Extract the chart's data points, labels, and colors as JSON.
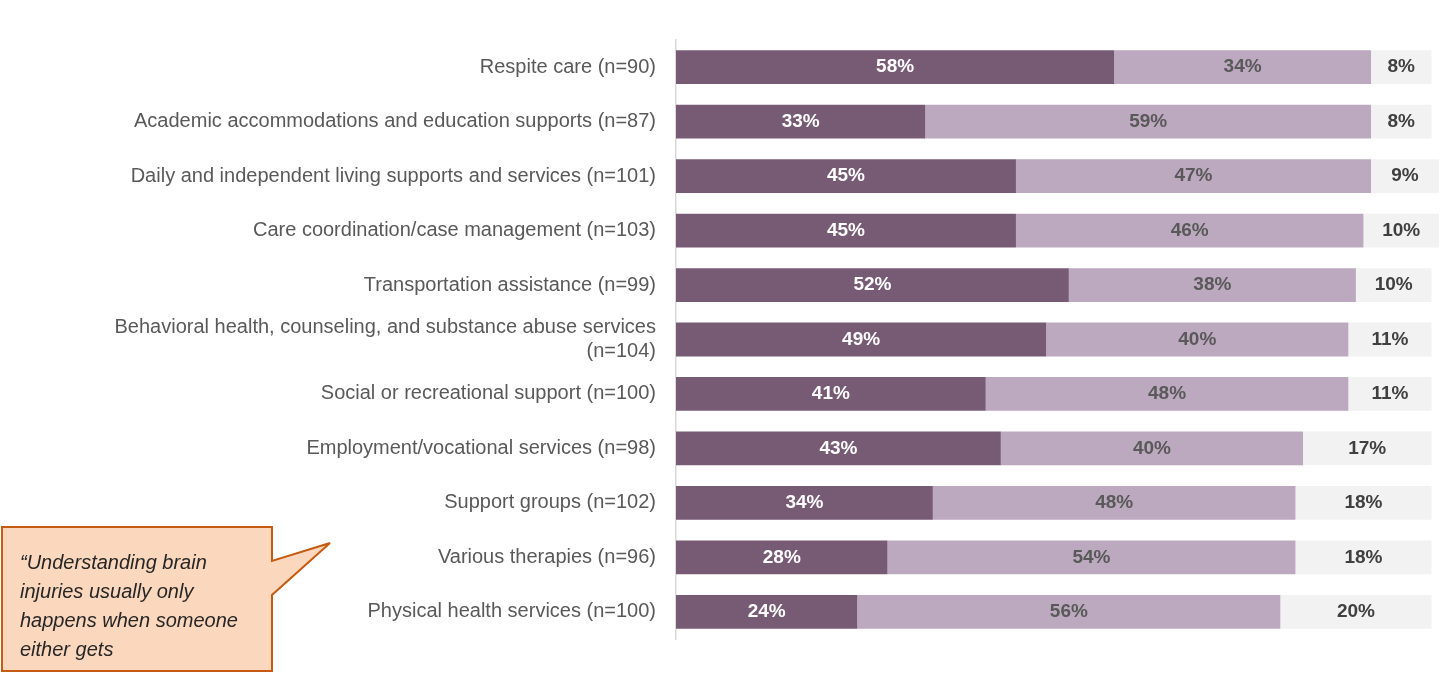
{
  "chart_data": {
    "type": "bar",
    "orientation": "horizontal",
    "stacked": true,
    "tick_labels": "y",
    "xlim": [
      0,
      101
    ],
    "categories": [
      "Respite care (n=90)",
      "Academic accommodations and education supports (n=87)",
      "Daily and independent living supports and services (n=101)",
      "Care coordination/case management (n=103)",
      "Transportation assistance (n=99)",
      "Behavioral health, counseling, and substance abuse services (n=104)",
      "Social or recreational support (n=100)",
      "Employment/vocational services (n=98)",
      "Support groups (n=102)",
      "Various therapies (n=96)",
      "Physical health services (n=100)"
    ],
    "series": [
      {
        "color": "#775b74",
        "values": [
          58,
          33,
          45,
          45,
          52,
          49,
          41,
          43,
          34,
          28,
          24
        ],
        "value_labels": [
          "58%",
          "33%",
          "45%",
          "45%",
          "52%",
          "49%",
          "41%",
          "43%",
          "34%",
          "28%",
          "24%"
        ]
      },
      {
        "color": "#bda9bf",
        "values": [
          34,
          59,
          47,
          46,
          38,
          40,
          48,
          40,
          48,
          54,
          56
        ],
        "value_labels": [
          "34%",
          "59%",
          "47%",
          "46%",
          "38%",
          "40%",
          "48%",
          "40%",
          "48%",
          "54%",
          "56%"
        ]
      },
      {
        "color": "#f2f2f2",
        "values": [
          8,
          8,
          9,
          10,
          10,
          11,
          11,
          17,
          18,
          18,
          20
        ],
        "value_labels": [
          "8%",
          "8%",
          "9%",
          "10%",
          "10%",
          "11%",
          "11%",
          "17%",
          "18%",
          "18%",
          "20%"
        ]
      }
    ],
    "annotations": [
      "“Understanding brain injuries usually only happens when someone either gets"
    ]
  }
}
